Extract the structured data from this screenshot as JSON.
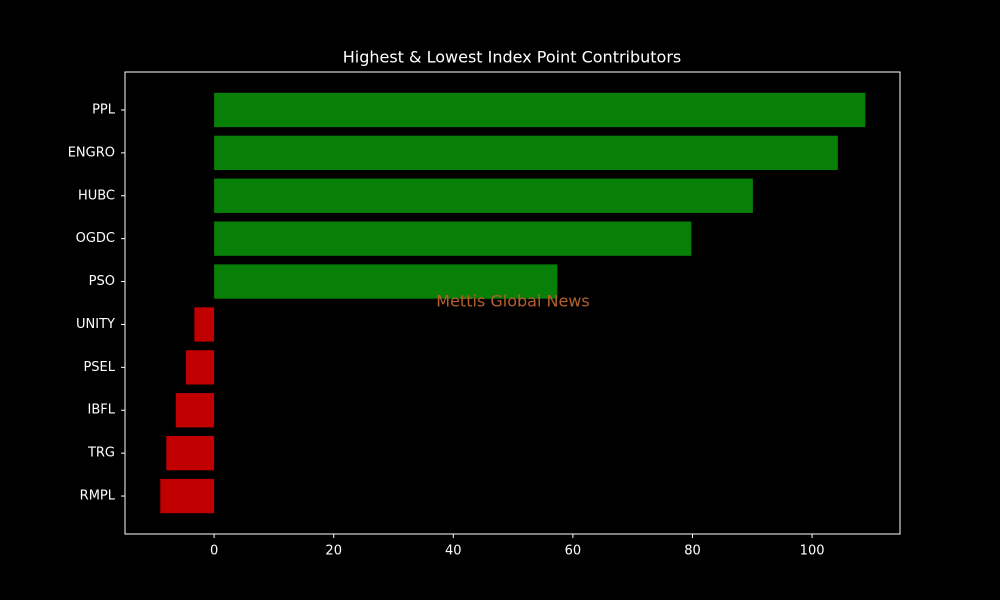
{
  "chart_data": {
    "type": "barh",
    "title": "Highest & Lowest Index Point Contributors",
    "categories": [
      "PPL",
      "ENGRO",
      "HUBC",
      "OGDC",
      "PSO",
      "UNITY",
      "PSEL",
      "IBFL",
      "TRG",
      "RMPL"
    ],
    "values": [
      108.9,
      104.3,
      90.1,
      79.8,
      57.4,
      -3.3,
      -4.7,
      -6.4,
      -8.0,
      -9.0
    ],
    "colors": [
      "#088008",
      "#088008",
      "#088008",
      "#088008",
      "#088008",
      "#c00000",
      "#c00000",
      "#c00000",
      "#c00000",
      "#c00000"
    ],
    "xlim": [
      -14.9,
      114.7
    ],
    "xticks": [
      0,
      20,
      40,
      60,
      80,
      100
    ],
    "annotation": {
      "text": "Mettis Global News",
      "color": "#b5602a"
    }
  }
}
